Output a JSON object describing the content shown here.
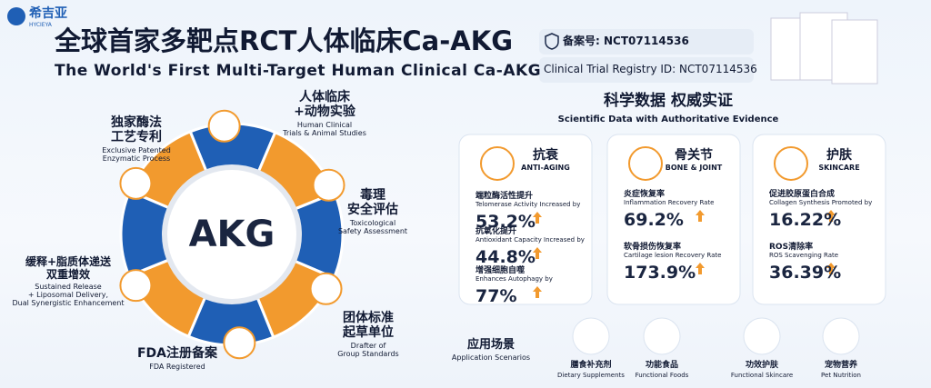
{
  "header": {
    "logo": "希吉亚",
    "logo_sub": "HYCIEYA",
    "title_cn": "全球首家多靶点RCT人体临床Ca-AKG",
    "title_en": "The World's First Multi-Target Human Clinical Ca-AKG",
    "registry_cn": "备案号: NCT07114536",
    "registry_en": "Clinical Trial Registry ID: NCT07114536"
  },
  "ring": {
    "center": "AKG",
    "labels": [
      {
        "cn": [
          "独家酶法",
          "工艺专利"
        ],
        "en": [
          "Exclusive Patented",
          "Enzymatic Process"
        ]
      },
      {
        "cn": [
          "人体临床",
          "+动物实验"
        ],
        "en": [
          "Human Clinical",
          "Trials & Animal Studies"
        ]
      },
      {
        "cn": [
          "毒理",
          "安全评估"
        ],
        "en": [
          "Toxicological",
          "Safety Assessment"
        ]
      },
      {
        "cn": [
          "团体标准",
          "起草单位"
        ],
        "en": [
          "Drafter of",
          "Group Standards"
        ]
      },
      {
        "cn": [
          "FDA注册备案"
        ],
        "en": [
          "FDA Registered"
        ]
      },
      {
        "cn": [
          "缓释+脂质体递送",
          "双重增效"
        ],
        "en": [
          "Sustained Release",
          "+ Liposomal Delivery,",
          "Dual Synergistic Enhancement"
        ]
      }
    ]
  },
  "evidence": {
    "title_cn": "科学数据 权威实证",
    "title_en": "Scientific Data with Authoritative Evidence",
    "cards": [
      {
        "title_cn": "抗衰",
        "title_en": "ANTI-AGING",
        "metrics": [
          {
            "label_cn": "端粒酶活性提升",
            "label_en": "Telomerase Activity Increased by",
            "value": "53.2%"
          },
          {
            "label_cn": "抗氧化提升",
            "label_en": "Antioxidant Capacity Increased by",
            "value": "44.8%"
          },
          {
            "label_cn": "增强细胞自噬",
            "label_en": "Enhances Autophagy by",
            "value": "77%"
          }
        ]
      },
      {
        "title_cn": "骨关节",
        "title_en": "BONE & JOINT",
        "metrics": [
          {
            "label_cn": "炎症恢复率",
            "label_en": "Inflammation Recovery Rate",
            "value": "69.2%"
          },
          {
            "label_cn": "软骨损伤恢复率",
            "label_en": "Cartilage lesion Recovery Rate",
            "value": "173.9%"
          }
        ]
      },
      {
        "title_cn": "护肤",
        "title_en": "SKINCARE",
        "metrics": [
          {
            "label_cn": "促进胶原蛋白合成",
            "label_en": "Collagen Synthesis Promoted by",
            "value": "16.22%"
          },
          {
            "label_cn": "ROS清除率",
            "label_en": "ROS Scavenging Rate",
            "value": "36.39%"
          }
        ]
      }
    ]
  },
  "applications": {
    "title_cn": "应用场景",
    "title_en": "Application Scenarios",
    "items": [
      {
        "cn": "膳食补充剂",
        "en": "Dietary Supplements"
      },
      {
        "cn": "功能食品",
        "en": "Functional Foods"
      },
      {
        "cn": "功效护肤",
        "en": "Functional Skincare"
      },
      {
        "cn": "宠物营养",
        "en": "Pet Nutrition"
      }
    ]
  }
}
